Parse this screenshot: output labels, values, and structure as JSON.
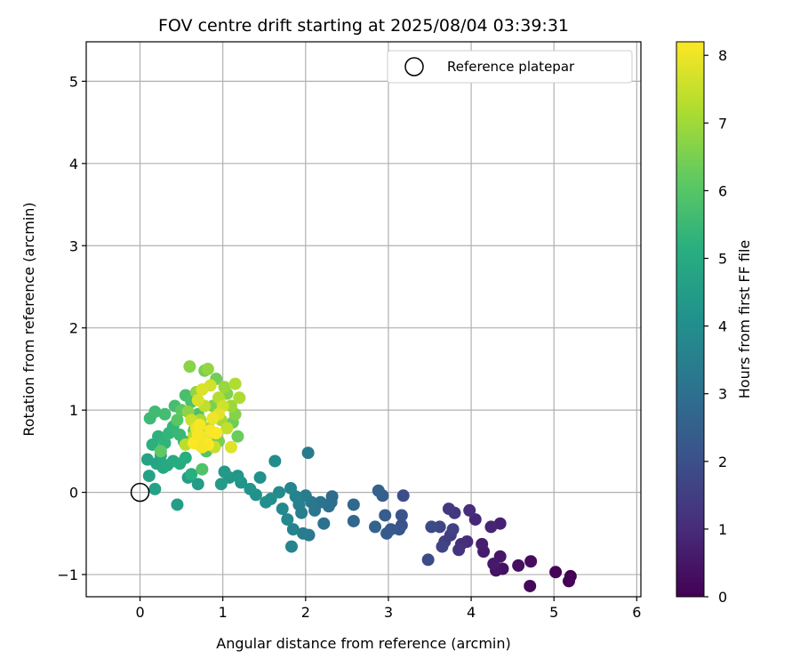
{
  "chart_data": {
    "type": "scatter",
    "title": "FOV centre drift starting at 2025/08/04 03:39:31",
    "xlabel": "Angular distance from reference (arcmin)",
    "ylabel": "Rotation from reference (arcmin)",
    "xlim": [
      -0.65,
      6.05
    ],
    "ylim": [
      -1.27,
      5.48
    ],
    "xticks": [
      0,
      1,
      2,
      3,
      4,
      5,
      6
    ],
    "yticks": [
      -1,
      0,
      1,
      2,
      3,
      4,
      5
    ],
    "grid": true,
    "legend": {
      "placement": "top-right",
      "entries": [
        "Reference platepar"
      ]
    },
    "reference_point": {
      "x": 0,
      "y": 0,
      "label": "Reference platepar"
    },
    "colorbar": {
      "label": "Hours from first FF file",
      "min": 0,
      "max": 8.2,
      "ticks": [
        0,
        1,
        2,
        3,
        4,
        5,
        6,
        7,
        8
      ],
      "colormap": "viridis"
    },
    "points": [
      [
        5.2,
        -1.02,
        0.0
      ],
      [
        5.18,
        -1.08,
        0.05
      ],
      [
        5.02,
        -0.97,
        0.1
      ],
      [
        4.71,
        -1.14,
        0.18
      ],
      [
        4.72,
        -0.84,
        0.25
      ],
      [
        4.57,
        -0.89,
        0.32
      ],
      [
        4.38,
        -0.93,
        0.38
      ],
      [
        4.3,
        -0.95,
        0.45
      ],
      [
        4.35,
        -0.78,
        0.52
      ],
      [
        4.27,
        -0.87,
        0.58
      ],
      [
        4.15,
        -0.72,
        0.65
      ],
      [
        4.13,
        -0.63,
        0.72
      ],
      [
        4.35,
        -0.38,
        0.78
      ],
      [
        4.24,
        -0.42,
        0.85
      ],
      [
        4.05,
        -0.33,
        0.92
      ],
      [
        3.95,
        -0.6,
        1.0
      ],
      [
        3.98,
        -0.22,
        1.05
      ],
      [
        3.88,
        -0.63,
        1.12
      ],
      [
        3.85,
        -0.7,
        1.2
      ],
      [
        3.8,
        -0.25,
        1.27
      ],
      [
        3.73,
        -0.2,
        1.35
      ],
      [
        3.75,
        -0.52,
        1.42
      ],
      [
        3.68,
        -0.6,
        1.5
      ],
      [
        3.78,
        -0.45,
        1.58
      ],
      [
        3.65,
        -0.66,
        1.65
      ],
      [
        3.62,
        -0.42,
        1.72
      ],
      [
        3.52,
        -0.42,
        1.8
      ],
      [
        3.48,
        -0.82,
        1.88
      ],
      [
        3.18,
        -0.04,
        1.95
      ],
      [
        3.16,
        -0.4,
        2.02
      ],
      [
        3.16,
        -0.28,
        2.1
      ],
      [
        3.13,
        -0.45,
        2.18
      ],
      [
        3.03,
        -0.45,
        2.25
      ],
      [
        2.98,
        -0.5,
        2.32
      ],
      [
        2.96,
        -0.28,
        2.4
      ],
      [
        2.93,
        -0.04,
        2.48
      ],
      [
        2.88,
        0.02,
        2.55
      ],
      [
        2.84,
        -0.42,
        2.62
      ],
      [
        2.58,
        -0.35,
        2.7
      ],
      [
        2.58,
        -0.15,
        2.78
      ],
      [
        2.32,
        -0.05,
        2.85
      ],
      [
        2.31,
        -0.12,
        2.92
      ],
      [
        2.28,
        -0.17,
        3.0
      ],
      [
        2.22,
        -0.38,
        3.05
      ],
      [
        2.18,
        -0.12,
        3.12
      ],
      [
        2.11,
        -0.22,
        3.18
      ],
      [
        2.07,
        -0.12,
        3.25
      ],
      [
        2.04,
        -0.52,
        3.3
      ],
      [
        2.03,
        0.48,
        3.35
      ],
      [
        1.97,
        -0.5,
        3.4
      ],
      [
        2.0,
        -0.04,
        3.45
      ],
      [
        1.95,
        -0.25,
        3.5
      ],
      [
        1.92,
        -0.15,
        3.55
      ],
      [
        1.88,
        -0.05,
        3.6
      ],
      [
        1.85,
        -0.45,
        3.65
      ],
      [
        1.83,
        -0.66,
        3.7
      ],
      [
        1.82,
        0.05,
        3.75
      ],
      [
        1.78,
        -0.33,
        3.8
      ],
      [
        1.72,
        -0.2,
        3.85
      ],
      [
        1.68,
        0.0,
        3.9
      ],
      [
        1.63,
        0.38,
        3.95
      ],
      [
        1.58,
        -0.08,
        4.0
      ],
      [
        1.52,
        -0.12,
        4.05
      ],
      [
        1.45,
        0.18,
        4.1
      ],
      [
        1.4,
        -0.03,
        4.15
      ],
      [
        1.33,
        0.04,
        4.2
      ],
      [
        1.22,
        0.12,
        4.25
      ],
      [
        1.18,
        0.2,
        4.3
      ],
      [
        1.08,
        0.18,
        4.35
      ],
      [
        1.02,
        0.25,
        4.4
      ],
      [
        0.98,
        0.1,
        4.45
      ],
      [
        0.7,
        0.1,
        4.5
      ],
      [
        0.45,
        -0.15,
        4.55
      ],
      [
        0.58,
        0.18,
        4.6
      ],
      [
        0.18,
        0.04,
        4.65
      ],
      [
        0.11,
        0.2,
        4.7
      ],
      [
        0.09,
        0.4,
        4.75
      ],
      [
        0.2,
        0.35,
        4.8
      ],
      [
        0.25,
        0.45,
        4.85
      ],
      [
        0.28,
        0.3,
        4.9
      ],
      [
        0.33,
        0.33,
        4.95
      ],
      [
        0.4,
        0.38,
        5.0
      ],
      [
        0.48,
        0.35,
        5.05
      ],
      [
        0.55,
        0.42,
        5.1
      ],
      [
        0.62,
        0.22,
        5.15
      ],
      [
        0.15,
        0.58,
        5.2
      ],
      [
        0.22,
        0.68,
        5.25
      ],
      [
        0.3,
        0.6,
        5.3
      ],
      [
        0.35,
        0.72,
        5.35
      ],
      [
        0.4,
        0.8,
        5.4
      ],
      [
        0.48,
        0.7,
        5.45
      ],
      [
        0.53,
        0.62,
        5.5
      ],
      [
        0.12,
        0.9,
        5.55
      ],
      [
        0.18,
        0.98,
        5.6
      ],
      [
        0.3,
        0.95,
        5.65
      ],
      [
        0.42,
        1.05,
        5.7
      ],
      [
        0.55,
        1.18,
        5.75
      ],
      [
        0.62,
        1.1,
        5.8
      ],
      [
        0.7,
        0.95,
        5.85
      ],
      [
        0.75,
        0.28,
        5.9
      ],
      [
        0.8,
        0.5,
        5.95
      ],
      [
        0.85,
        0.7,
        6.0
      ],
      [
        0.45,
        0.88,
        6.05
      ],
      [
        0.5,
        1.0,
        6.1
      ],
      [
        0.25,
        0.5,
        6.15
      ],
      [
        0.65,
        0.75,
        6.2
      ],
      [
        0.72,
        0.58,
        6.25
      ],
      [
        1.18,
        0.68,
        6.3
      ],
      [
        1.12,
        0.85,
        6.35
      ],
      [
        0.92,
        1.38,
        6.4
      ],
      [
        0.78,
        1.48,
        6.45
      ],
      [
        0.95,
        0.62,
        6.5
      ],
      [
        0.88,
        1.05,
        6.55
      ],
      [
        1.05,
        1.2,
        6.6
      ],
      [
        1.15,
        0.95,
        6.65
      ],
      [
        0.6,
        1.53,
        6.7
      ],
      [
        0.58,
        0.98,
        6.75
      ],
      [
        0.68,
        1.22,
        6.8
      ],
      [
        0.82,
        1.5,
        6.85
      ],
      [
        1.02,
        1.28,
        6.9
      ],
      [
        1.1,
        1.05,
        6.95
      ],
      [
        0.98,
        0.88,
        7.0
      ],
      [
        0.83,
        0.78,
        7.05
      ],
      [
        0.73,
        0.88,
        7.1
      ],
      [
        1.2,
        1.15,
        7.15
      ],
      [
        1.15,
        1.32,
        7.2
      ],
      [
        0.95,
        1.15,
        7.25
      ],
      [
        0.65,
        0.68,
        7.3
      ],
      [
        0.55,
        0.58,
        7.35
      ],
      [
        0.78,
        1.05,
        7.4
      ],
      [
        1.05,
        0.78,
        7.45
      ],
      [
        0.9,
        0.55,
        7.5
      ],
      [
        0.62,
        0.88,
        7.55
      ],
      [
        1.0,
        1.05,
        7.6
      ],
      [
        0.85,
        1.3,
        7.65
      ],
      [
        0.7,
        1.12,
        7.7
      ],
      [
        0.75,
        1.25,
        7.75
      ],
      [
        1.1,
        0.55,
        7.8
      ],
      [
        0.95,
        0.95,
        7.85
      ],
      [
        0.8,
        0.65,
        7.9
      ],
      [
        0.68,
        0.78,
        7.95
      ],
      [
        0.88,
        0.9,
        8.0
      ],
      [
        0.78,
        0.62,
        8.05
      ],
      [
        0.72,
        0.82,
        8.1
      ],
      [
        0.85,
        0.75,
        8.15
      ],
      [
        0.65,
        0.6,
        8.2
      ],
      [
        0.82,
        0.58,
        8.2
      ],
      [
        0.92,
        0.72,
        8.18
      ],
      [
        0.7,
        0.7,
        8.12
      ],
      [
        0.75,
        0.55,
        8.08
      ]
    ]
  }
}
